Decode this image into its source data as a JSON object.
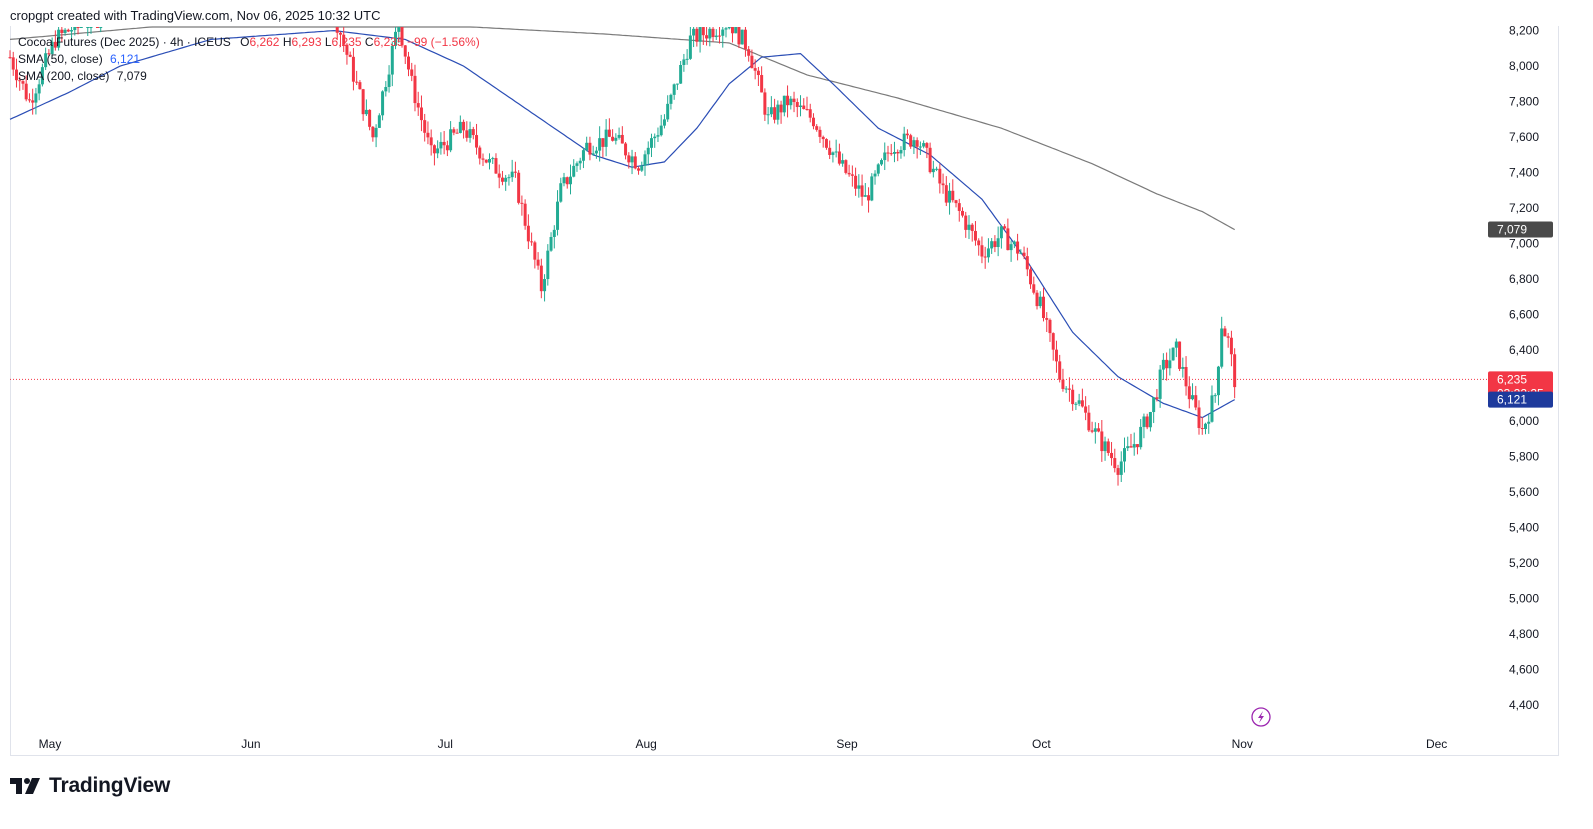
{
  "header": {
    "attribution": "cropgpt created with TradingView.com, Nov 06, 2025 10:32 UTC"
  },
  "legend": {
    "symbol": "Cocoa Futures (Dec 2025) · 4h · ICEUS",
    "o_label": "O",
    "o_value": "6,262",
    "h_label": "H",
    "h_value": "6,293",
    "l_label": "L",
    "l_value": "6,235",
    "c_label": "C",
    "c_value": "6,235",
    "change": "−99 (−1.56%)",
    "sma50_label": "SMA (50, close)",
    "sma50_value": "6,121",
    "sma200_label": "SMA (200, close)",
    "sma200_value": "7,079"
  },
  "branding": {
    "name": "TradingView"
  },
  "colors": {
    "up": "#22ab94",
    "down": "#f23645",
    "sma50": "#2a4db5",
    "sma200": "#7a7a7a",
    "price_line": "#f23645"
  },
  "chart_data": {
    "type": "candlestick",
    "symbol": "Cocoa Futures (Dec 2025)",
    "interval": "4h",
    "x_ticks": [
      "May",
      "Jun",
      "Jul",
      "Aug",
      "Sep",
      "Oct",
      "Nov",
      "Dec"
    ],
    "x_range": [
      "2025-05-01",
      "2025-12-08"
    ],
    "y_ticks": [
      4400,
      4600,
      4800,
      5000,
      5200,
      5400,
      5600,
      5800,
      6000,
      6200,
      6400,
      6600,
      6800,
      7000,
      7200,
      7400,
      7600,
      7800,
      8000,
      8200
    ],
    "ylim": [
      4260,
      8220
    ],
    "last_price": {
      "value": 6235,
      "label": "6,235",
      "countdown": "03:22:25"
    },
    "sma50_last": {
      "value": 6121,
      "label": "6,121"
    },
    "sma200_last": {
      "value": 7079,
      "label": "7,079"
    },
    "price_path": [
      [
        "2025-05-01",
        8050
      ],
      [
        "2025-05-04",
        7800
      ],
      [
        "2025-05-08",
        8150
      ],
      [
        "2025-05-12",
        8250
      ],
      [
        "2025-05-15",
        8300
      ],
      [
        "2025-06-20",
        8300
      ],
      [
        "2025-06-26",
        7600
      ],
      [
        "2025-06-30",
        8250
      ],
      [
        "2025-07-02",
        7900
      ],
      [
        "2025-07-05",
        7500
      ],
      [
        "2025-07-10",
        7650
      ],
      [
        "2025-07-14",
        7450
      ],
      [
        "2025-07-18",
        7350
      ],
      [
        "2025-07-22",
        6750
      ],
      [
        "2025-07-25",
        7300
      ],
      [
        "2025-07-29",
        7550
      ],
      [
        "2025-08-02",
        7600
      ],
      [
        "2025-08-06",
        7450
      ],
      [
        "2025-08-10",
        7700
      ],
      [
        "2025-08-14",
        8150
      ],
      [
        "2025-08-20",
        8250
      ],
      [
        "2025-08-23",
        8100
      ],
      [
        "2025-08-26",
        7700
      ],
      [
        "2025-08-29",
        7800
      ],
      [
        "2025-09-02",
        7700
      ],
      [
        "2025-09-06",
        7450
      ],
      [
        "2025-09-10",
        7250
      ],
      [
        "2025-09-14",
        7550
      ],
      [
        "2025-09-18",
        7600
      ],
      [
        "2025-09-22",
        7300
      ],
      [
        "2025-09-25",
        7150
      ],
      [
        "2025-09-28",
        6950
      ],
      [
        "2025-10-01",
        7050
      ],
      [
        "2025-10-04",
        6950
      ],
      [
        "2025-10-07",
        6650
      ],
      [
        "2025-10-10",
        6250
      ],
      [
        "2025-10-13",
        6100
      ],
      [
        "2025-10-16",
        5900
      ],
      [
        "2025-10-19",
        5750
      ],
      [
        "2025-10-22",
        5900
      ],
      [
        "2025-10-24",
        6050
      ],
      [
        "2025-10-26",
        6300
      ],
      [
        "2025-10-28",
        6400
      ],
      [
        "2025-10-30",
        6150
      ],
      [
        "2025-11-01",
        5950
      ],
      [
        "2025-11-03",
        6150
      ],
      [
        "2025-11-04",
        6550
      ],
      [
        "2025-11-05",
        6450
      ],
      [
        "2025-11-06",
        6235
      ]
    ],
    "sma50": [
      [
        "2025-05-01",
        7700
      ],
      [
        "2025-05-10",
        7850
      ],
      [
        "2025-05-18",
        8000
      ],
      [
        "2025-06-01",
        8150
      ],
      [
        "2025-06-20",
        8200
      ],
      [
        "2025-07-01",
        8150
      ],
      [
        "2025-07-10",
        8000
      ],
      [
        "2025-07-20",
        7750
      ],
      [
        "2025-07-30",
        7500
      ],
      [
        "2025-08-05",
        7430
      ],
      [
        "2025-08-10",
        7460
      ],
      [
        "2025-08-15",
        7650
      ],
      [
        "2025-08-20",
        7900
      ],
      [
        "2025-08-25",
        8050
      ],
      [
        "2025-08-31",
        8070
      ],
      [
        "2025-09-05",
        7900
      ],
      [
        "2025-09-12",
        7650
      ],
      [
        "2025-09-20",
        7500
      ],
      [
        "2025-09-28",
        7250
      ],
      [
        "2025-10-05",
        6900
      ],
      [
        "2025-10-12",
        6500
      ],
      [
        "2025-10-19",
        6250
      ],
      [
        "2025-10-26",
        6100
      ],
      [
        "2025-11-01",
        6020
      ],
      [
        "2025-11-06",
        6121
      ]
    ],
    "sma200": [
      [
        "2025-05-01",
        8150
      ],
      [
        "2025-06-01",
        8250
      ],
      [
        "2025-07-01",
        8240
      ],
      [
        "2025-08-01",
        8180
      ],
      [
        "2025-08-20",
        8130
      ],
      [
        "2025-09-01",
        7950
      ],
      [
        "2025-09-15",
        7820
      ],
      [
        "2025-10-01",
        7650
      ],
      [
        "2025-10-15",
        7450
      ],
      [
        "2025-10-25",
        7280
      ],
      [
        "2025-11-01",
        7180
      ],
      [
        "2025-11-06",
        7079
      ]
    ]
  }
}
